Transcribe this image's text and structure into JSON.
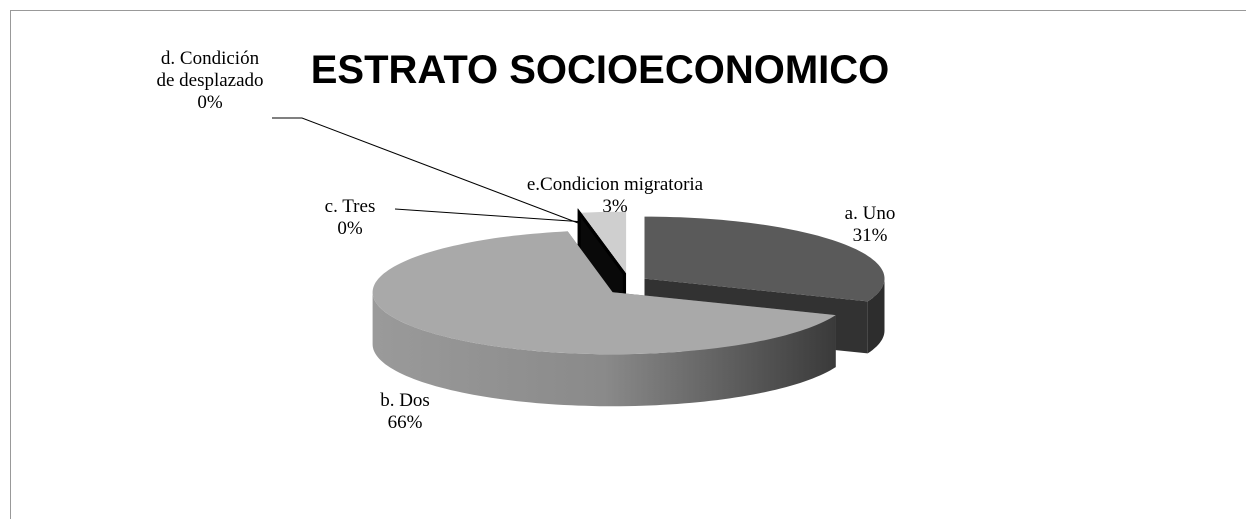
{
  "chart_data": {
    "type": "pie3d",
    "title": "ESTRATO SOCIOECONOMICO",
    "categories": [
      "a. Uno",
      "b. Dos",
      "c. Tres",
      "d. Condición de desplazado",
      "e.Condicion migratoria"
    ],
    "values": [
      31,
      66,
      0,
      0,
      3
    ],
    "value_labels": [
      "31%",
      "66%",
      "0%",
      "0%",
      "3%"
    ],
    "colors": [
      "#5a5a5a",
      "#a9a9a9",
      "#7a7a7a",
      "#111111",
      "#cfcfcf"
    ]
  }
}
